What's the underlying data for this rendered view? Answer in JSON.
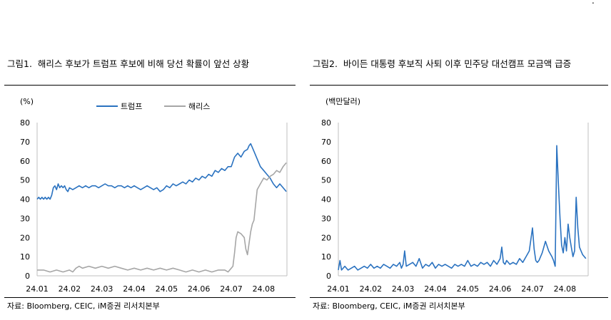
{
  "corner_mark": ".",
  "panels": [
    {
      "title": "그림1.  해리스 후보가 트럼프 후보에 비해 당선 확률이 앞선 상황",
      "source": "자료: Bloomberg, CEIC, iM증권 리서치본부",
      "colors": {
        "trump": "#2a72c0",
        "harris": "#a6a6a6"
      }
    },
    {
      "title": "그림2.  바이든 대통령 후보직 사퇴 이후 민주당 대선캠프 모금액 급증",
      "source": "자료: Bloomberg, CEIC, iM증권 리서치본부",
      "colors": {
        "line": "#2a72c0"
      }
    }
  ],
  "chart_data": [
    {
      "type": "line",
      "unit_label": "(%)",
      "ylim": [
        0,
        80
      ],
      "yticks": [
        0,
        10,
        20,
        30,
        40,
        50,
        60,
        70,
        80
      ],
      "xticks": [
        "24.01",
        "24.02",
        "24.03",
        "24.04",
        "24.05",
        "24.06",
        "24.07",
        "24.08"
      ],
      "xlim": [
        0,
        7.72
      ],
      "legend": "top-center",
      "series": [
        {
          "name": "트럼프",
          "color": "#2a72c0",
          "x": [
            0,
            0.05,
            0.1,
            0.15,
            0.2,
            0.25,
            0.3,
            0.35,
            0.4,
            0.45,
            0.5,
            0.55,
            0.6,
            0.65,
            0.7,
            0.75,
            0.8,
            0.85,
            0.9,
            0.95,
            1,
            1.1,
            1.2,
            1.3,
            1.4,
            1.5,
            1.6,
            1.7,
            1.8,
            1.9,
            2,
            2.1,
            2.2,
            2.3,
            2.4,
            2.5,
            2.6,
            2.7,
            2.8,
            2.9,
            3,
            3.1,
            3.2,
            3.3,
            3.4,
            3.5,
            3.6,
            3.7,
            3.8,
            3.9,
            4,
            4.1,
            4.2,
            4.3,
            4.4,
            4.5,
            4.6,
            4.7,
            4.8,
            4.9,
            5,
            5.1,
            5.2,
            5.3,
            5.4,
            5.5,
            5.6,
            5.7,
            5.8,
            5.9,
            6,
            6.1,
            6.2,
            6.3,
            6.4,
            6.5,
            6.55,
            6.6,
            6.65,
            6.7,
            6.8,
            6.9,
            7,
            7.1,
            7.2,
            7.3,
            7.4,
            7.5,
            7.6,
            7.7
          ],
          "y": [
            40,
            41,
            40,
            41,
            40,
            41,
            40,
            41,
            40,
            42,
            46,
            47,
            45,
            48,
            46,
            47,
            46,
            47,
            45,
            44,
            46,
            45,
            46,
            47,
            46,
            47,
            46,
            47,
            47,
            46,
            47,
            48,
            47,
            47,
            46,
            47,
            47,
            46,
            47,
            46,
            47,
            46,
            45,
            46,
            47,
            46,
            45,
            46,
            44,
            45,
            47,
            46,
            48,
            47,
            48,
            49,
            48,
            50,
            49,
            51,
            50,
            52,
            51,
            53,
            52,
            55,
            54,
            56,
            55,
            57,
            57,
            62,
            64,
            62,
            65,
            66,
            68,
            69,
            67,
            65,
            61,
            57,
            55,
            53,
            51,
            48,
            46,
            48,
            46,
            44
          ]
        },
        {
          "name": "해리스",
          "color": "#a6a6a6",
          "x": [
            0,
            0.2,
            0.4,
            0.6,
            0.8,
            1,
            1.1,
            1.2,
            1.3,
            1.4,
            1.6,
            1.8,
            2,
            2.2,
            2.4,
            2.6,
            2.8,
            3,
            3.2,
            3.4,
            3.6,
            3.8,
            4,
            4.2,
            4.4,
            4.6,
            4.8,
            5,
            5.2,
            5.4,
            5.6,
            5.8,
            5.9,
            6,
            6.05,
            6.1,
            6.15,
            6.2,
            6.3,
            6.4,
            6.45,
            6.5,
            6.6,
            6.65,
            6.7,
            6.8,
            6.9,
            7,
            7.1,
            7.2,
            7.3,
            7.4,
            7.5,
            7.6,
            7.65,
            7.7
          ],
          "y": [
            3,
            3,
            2,
            3,
            2,
            3,
            2,
            4,
            5,
            4,
            5,
            4,
            5,
            4,
            5,
            4,
            3,
            4,
            3,
            4,
            3,
            4,
            3,
            4,
            3,
            2,
            3,
            2,
            3,
            2,
            3,
            3,
            2,
            4,
            5,
            12,
            20,
            23,
            22,
            20,
            14,
            11,
            23,
            27,
            29,
            45,
            48,
            51,
            50,
            52,
            53,
            55,
            54,
            57,
            58,
            59
          ]
        }
      ]
    },
    {
      "type": "line",
      "unit_label": "(백만달러)",
      "ylim": [
        0,
        80
      ],
      "yticks": [
        0,
        10,
        20,
        30,
        40,
        50,
        60,
        70,
        80
      ],
      "xticks": [
        "24.01",
        "24.02",
        "24.03",
        "24.04",
        "24.05",
        "24.06",
        "24.07",
        "24.08"
      ],
      "xlim": [
        0,
        7.72
      ],
      "series": [
        {
          "color": "#2a72c0",
          "x": [
            0,
            0.05,
            0.1,
            0.2,
            0.3,
            0.4,
            0.5,
            0.6,
            0.7,
            0.8,
            0.9,
            1,
            1.1,
            1.2,
            1.3,
            1.4,
            1.5,
            1.6,
            1.7,
            1.8,
            1.9,
            1.95,
            2,
            2.05,
            2.1,
            2.2,
            2.3,
            2.4,
            2.5,
            2.6,
            2.7,
            2.8,
            2.9,
            3,
            3.1,
            3.2,
            3.3,
            3.4,
            3.5,
            3.6,
            3.7,
            3.8,
            3.9,
            4,
            4.1,
            4.2,
            4.3,
            4.4,
            4.5,
            4.6,
            4.7,
            4.8,
            4.9,
            5,
            5.05,
            5.1,
            5.15,
            5.2,
            5.3,
            5.4,
            5.5,
            5.6,
            5.7,
            5.8,
            5.9,
            6,
            6.05,
            6.1,
            6.15,
            6.2,
            6.3,
            6.4,
            6.5,
            6.6,
            6.65,
            6.7,
            6.75,
            6.8,
            6.85,
            6.9,
            6.95,
            7,
            7.05,
            7.1,
            7.15,
            7.2,
            7.25,
            7.3,
            7.35,
            7.4,
            7.45,
            7.5,
            7.55,
            7.6,
            7.65
          ],
          "y": [
            3,
            8,
            3,
            5,
            3,
            4,
            5,
            3,
            4,
            5,
            4,
            6,
            4,
            5,
            4,
            6,
            5,
            4,
            6,
            5,
            7,
            4,
            6,
            13,
            5,
            6,
            7,
            5,
            9,
            4,
            6,
            5,
            7,
            4,
            6,
            5,
            6,
            5,
            4,
            6,
            5,
            6,
            5,
            8,
            5,
            6,
            5,
            7,
            6,
            7,
            5,
            8,
            6,
            9,
            15,
            7,
            6,
            8,
            6,
            7,
            6,
            9,
            7,
            10,
            13,
            25,
            14,
            8,
            7,
            8,
            12,
            18,
            13,
            10,
            8,
            5,
            68,
            48,
            30,
            16,
            12,
            20,
            13,
            27,
            20,
            15,
            10,
            13,
            41,
            25,
            15,
            13,
            11,
            10,
            9
          ]
        }
      ]
    }
  ]
}
